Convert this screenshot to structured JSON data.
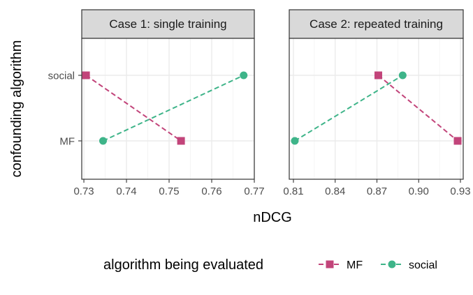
{
  "chart_data": {
    "type": "scatter",
    "xlabel": "nDCG",
    "ylabel": "confounding algorithm",
    "y_categories": [
      "MF",
      "social"
    ],
    "legend": {
      "title": "algorithm being evaluated",
      "position": "bottom",
      "entries": [
        {
          "name": "MF",
          "color": "#c2447a",
          "marker": "square"
        },
        {
          "name": "social",
          "color": "#3eb489",
          "marker": "circle"
        }
      ]
    },
    "facets": [
      {
        "strip": "Case 1: single training",
        "xlim": [
          0.7295,
          0.77
        ],
        "xticks": [
          0.73,
          0.74,
          0.75,
          0.76,
          0.77
        ],
        "xtick_labels": [
          "0.73",
          "0.74",
          "0.75",
          "0.76",
          "0.77"
        ],
        "series": [
          {
            "name": "MF",
            "points": [
              {
                "y": "social",
                "x": 0.7305
              },
              {
                "y": "MF",
                "x": 0.7528
              }
            ]
          },
          {
            "name": "social",
            "points": [
              {
                "y": "MF",
                "x": 0.7345
              },
              {
                "y": "social",
                "x": 0.7675
              }
            ]
          }
        ]
      },
      {
        "strip": "Case 2: repeated training",
        "xlim": [
          0.807,
          0.932
        ],
        "xticks": [
          0.81,
          0.84,
          0.87,
          0.9,
          0.93
        ],
        "xtick_labels": [
          "0.81",
          "0.84",
          "0.87",
          "0.90",
          "0.93"
        ],
        "series": [
          {
            "name": "MF",
            "points": [
              {
                "y": "social",
                "x": 0.871
              },
              {
                "y": "MF",
                "x": 0.928
              }
            ]
          },
          {
            "name": "social",
            "points": [
              {
                "y": "MF",
                "x": 0.811
              },
              {
                "y": "social",
                "x": 0.8885
              }
            ]
          }
        ]
      }
    ],
    "grid": true
  }
}
